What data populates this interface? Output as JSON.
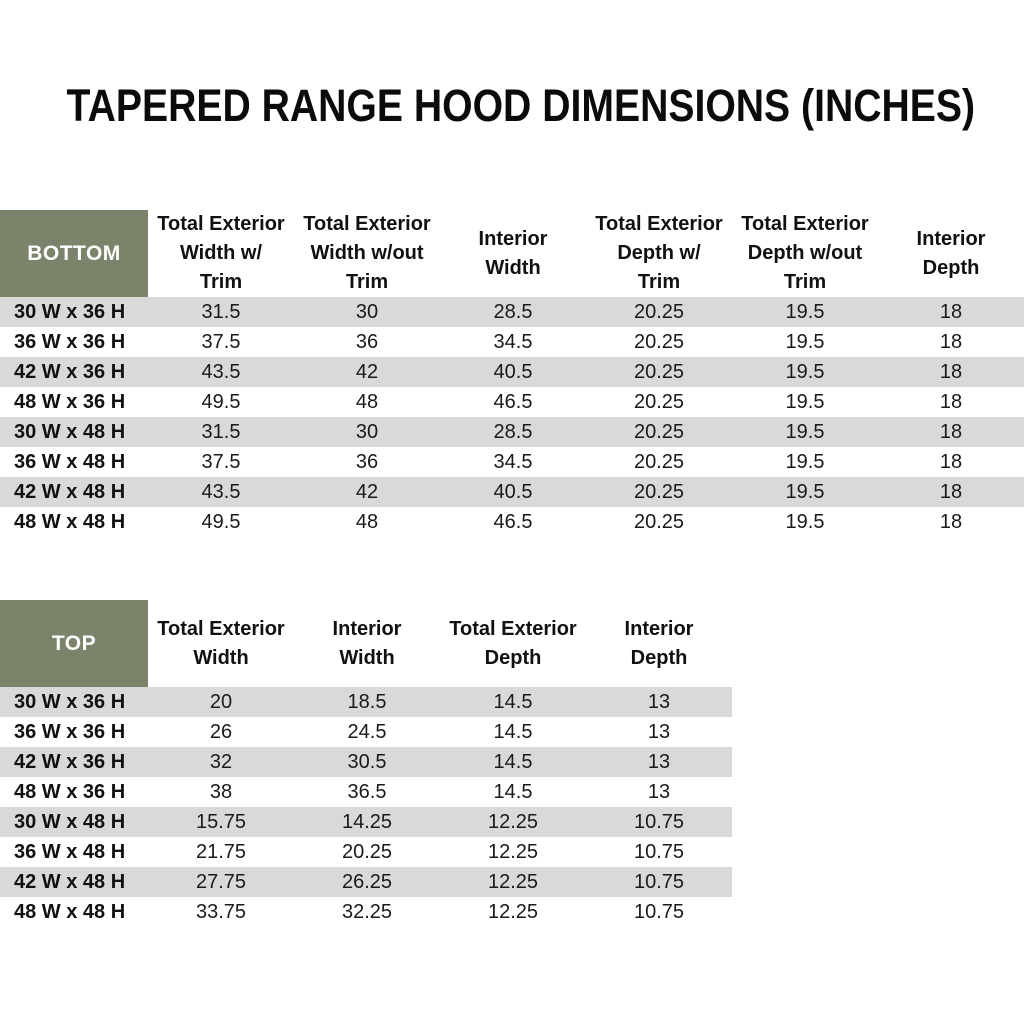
{
  "page": {
    "title": "TAPERED RANGE HOOD DIMENSIONS (INCHES)"
  },
  "colors": {
    "header_green": "#7B836B",
    "stripe_gray": "#D9D9D9",
    "text_color": "#1A1A1A"
  },
  "bottom_table": {
    "corner_label": "BOTTOM",
    "columns": [
      "Total Exterior\nWidth w/\nTrim",
      "Total Exterior\nWidth w/out\nTrim",
      "Interior\nWidth",
      "Total Exterior\nDepth w/\nTrim",
      "Total Exterior\nDepth w/out\nTrim",
      "Interior\nDepth"
    ],
    "rows": [
      {
        "label": "30 W x 36 H",
        "values": [
          "31.5",
          "30",
          "28.5",
          "20.25",
          "19.5",
          "18"
        ]
      },
      {
        "label": "36 W x 36 H",
        "values": [
          "37.5",
          "36",
          "34.5",
          "20.25",
          "19.5",
          "18"
        ]
      },
      {
        "label": "42 W x 36 H",
        "values": [
          "43.5",
          "42",
          "40.5",
          "20.25",
          "19.5",
          "18"
        ]
      },
      {
        "label": "48 W x 36 H",
        "values": [
          "49.5",
          "48",
          "46.5",
          "20.25",
          "19.5",
          "18"
        ]
      },
      {
        "label": "30 W x 48 H",
        "values": [
          "31.5",
          "30",
          "28.5",
          "20.25",
          "19.5",
          "18"
        ]
      },
      {
        "label": "36 W x 48 H",
        "values": [
          "37.5",
          "36",
          "34.5",
          "20.25",
          "19.5",
          "18"
        ]
      },
      {
        "label": "42 W x 48 H",
        "values": [
          "43.5",
          "42",
          "40.5",
          "20.25",
          "19.5",
          "18"
        ]
      },
      {
        "label": "48 W x 48 H",
        "values": [
          "49.5",
          "48",
          "46.5",
          "20.25",
          "19.5",
          "18"
        ]
      }
    ]
  },
  "top_table": {
    "corner_label": "TOP",
    "columns": [
      "Total Exterior\nWidth",
      "Interior\nWidth",
      "Total Exterior\nDepth",
      "Interior\nDepth"
    ],
    "rows": [
      {
        "label": "30 W x 36 H",
        "values": [
          "20",
          "18.5",
          "14.5",
          "13"
        ]
      },
      {
        "label": "36 W x 36 H",
        "values": [
          "26",
          "24.5",
          "14.5",
          "13"
        ]
      },
      {
        "label": "42 W x 36 H",
        "values": [
          "32",
          "30.5",
          "14.5",
          "13"
        ]
      },
      {
        "label": "48 W x 36 H",
        "values": [
          "38",
          "36.5",
          "14.5",
          "13"
        ]
      },
      {
        "label": "30 W x 48 H",
        "values": [
          "15.75",
          "14.25",
          "12.25",
          "10.75"
        ]
      },
      {
        "label": "36 W x 48 H",
        "values": [
          "21.75",
          "20.25",
          "12.25",
          "10.75"
        ]
      },
      {
        "label": "42 W x 48 H",
        "values": [
          "27.75",
          "26.25",
          "12.25",
          "10.75"
        ]
      },
      {
        "label": "48 W x 48 H",
        "values": [
          "33.75",
          "32.25",
          "12.25",
          "10.75"
        ]
      }
    ]
  }
}
